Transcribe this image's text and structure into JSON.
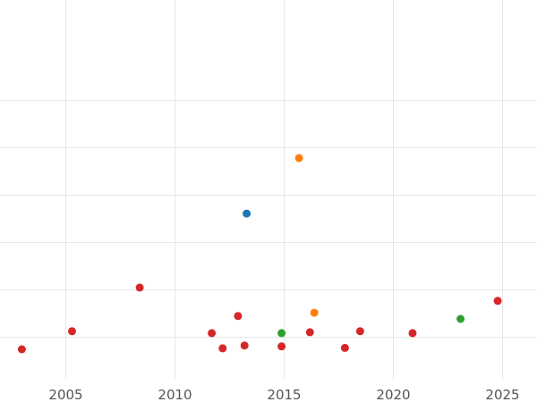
{
  "chart_data": {
    "type": "scatter",
    "title": "",
    "xlabel": "",
    "ylabel": "",
    "xlim": [
      2002.0,
      2026.6
    ],
    "ylim": [
      0,
      8
    ],
    "xticks": [
      2005,
      2010,
      2015,
      2020,
      2025
    ],
    "xtick_labels": [
      "2005",
      "2010",
      "2015",
      "2020",
      "2025"
    ],
    "ygrid": [
      0.9,
      1.9,
      2.9,
      3.9,
      4.9,
      5.9
    ],
    "grid": true,
    "legend": "none",
    "series": [
      {
        "color": "#1f77b4",
        "points": [
          {
            "x": 2013.3,
            "y": 3.5
          }
        ]
      },
      {
        "color": "#ff7f0e",
        "points": [
          {
            "x": 2015.7,
            "y": 4.67
          },
          {
            "x": 2016.4,
            "y": 1.41
          }
        ]
      },
      {
        "color": "#2ca02c",
        "points": [
          {
            "x": 2014.9,
            "y": 0.98
          },
          {
            "x": 2023.1,
            "y": 1.28
          }
        ]
      },
      {
        "color": "#d62728",
        "points": [
          {
            "x": 2003.0,
            "y": 0.64
          },
          {
            "x": 2005.3,
            "y": 1.02
          },
          {
            "x": 2008.4,
            "y": 1.94
          },
          {
            "x": 2011.7,
            "y": 0.98
          },
          {
            "x": 2012.2,
            "y": 0.66
          },
          {
            "x": 2012.9,
            "y": 1.34
          },
          {
            "x": 2013.2,
            "y": 0.72
          },
          {
            "x": 2014.9,
            "y": 0.7
          },
          {
            "x": 2016.2,
            "y": 1.0
          },
          {
            "x": 2017.8,
            "y": 0.67
          },
          {
            "x": 2018.5,
            "y": 1.02
          },
          {
            "x": 2020.9,
            "y": 0.98
          },
          {
            "x": 2024.8,
            "y": 1.66
          }
        ]
      }
    ]
  }
}
